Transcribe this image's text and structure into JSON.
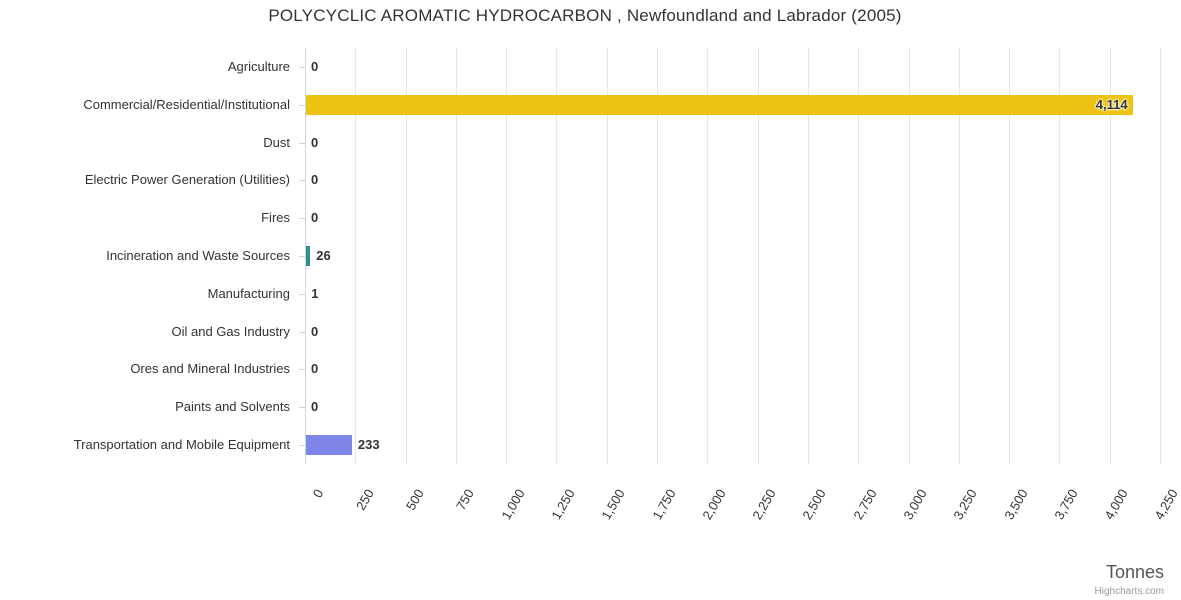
{
  "chart_data": {
    "type": "bar",
    "title": "POLYCYCLIC AROMATIC HYDROCARBON , Newfoundland and Labrador (2005)",
    "xlabel": "Tonnes",
    "credits": "Highcharts.com",
    "xlim": [
      0,
      4250
    ],
    "grid": true,
    "legend": false,
    "categories": [
      "Agriculture",
      "Commercial/Residential/Institutional",
      "Dust",
      "Electric Power Generation (Utilities)",
      "Fires",
      "Incineration and Waste Sources",
      "Manufacturing",
      "Oil and Gas Industry",
      "Ores and Mineral Industries",
      "Paints and Solvents",
      "Transportation and Mobile Equipment"
    ],
    "values": [
      0,
      4114,
      0,
      0,
      0,
      26,
      1,
      0,
      0,
      0,
      233
    ],
    "value_labels": [
      "0",
      "4,114",
      "0",
      "0",
      "0",
      "26",
      "1",
      "0",
      "0",
      "0",
      "233"
    ],
    "bar_colors": [
      null,
      "#edc213",
      null,
      null,
      null,
      "#2b908f",
      null,
      null,
      null,
      null,
      "#8085e9"
    ],
    "default_bar_color": "#7cb5ec",
    "tick_values": [
      0,
      250,
      500,
      750,
      1000,
      1250,
      1500,
      1750,
      2000,
      2250,
      2500,
      2750,
      3000,
      3250,
      3500,
      3750,
      4000,
      4250
    ],
    "tick_labels": [
      "0",
      "250",
      "500",
      "750",
      "1,000",
      "1,250",
      "1,500",
      "1,750",
      "2,000",
      "2,250",
      "2,500",
      "2,750",
      "3,000",
      "3,250",
      "3,500",
      "3,750",
      "4,000",
      "4,250"
    ],
    "colors": {
      "grid": "#e6e6e6",
      "axis": "#ccd6eb",
      "text": "#333333",
      "axis_title": "#555555",
      "credits": "#999999"
    }
  }
}
